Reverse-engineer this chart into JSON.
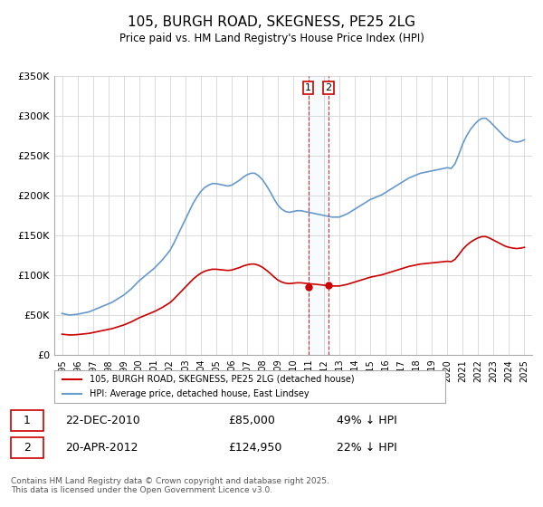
{
  "title": "105, BURGH ROAD, SKEGNESS, PE25 2LG",
  "subtitle": "Price paid vs. HM Land Registry's House Price Index (HPI)",
  "legend_label_red": "105, BURGH ROAD, SKEGNESS, PE25 2LG (detached house)",
  "legend_label_blue": "HPI: Average price, detached house, East Lindsey",
  "ylabel": "",
  "xlabel": "",
  "background_color": "#ffffff",
  "plot_bg_color": "#ffffff",
  "grid_color": "#cccccc",
  "line_color_red": "#cc0000",
  "line_color_blue": "#6699cc",
  "vline_color": "#cc0000",
  "marker1_date": 2010.97,
  "marker2_date": 2012.3,
  "transaction1": {
    "label": "1",
    "date": "22-DEC-2010",
    "price": "£85,000",
    "hpi": "49% ↓ HPI"
  },
  "transaction2": {
    "label": "2",
    "date": "20-APR-2012",
    "price": "£124,950",
    "hpi": "22% ↓ HPI"
  },
  "footer": "Contains HM Land Registry data © Crown copyright and database right 2025.\nThis data is licensed under the Open Government Licence v3.0.",
  "ylim": [
    0,
    350000
  ],
  "yticks": [
    0,
    50000,
    100000,
    150000,
    200000,
    250000,
    300000,
    350000
  ],
  "ytick_labels": [
    "£0",
    "£50K",
    "£100K",
    "£150K",
    "£200K",
    "£250K",
    "£300K",
    "£350K"
  ],
  "hpi_years": [
    1995.0,
    1995.25,
    1995.5,
    1995.75,
    1996.0,
    1996.25,
    1996.5,
    1996.75,
    1997.0,
    1997.25,
    1997.5,
    1997.75,
    1998.0,
    1998.25,
    1998.5,
    1998.75,
    1999.0,
    1999.25,
    1999.5,
    1999.75,
    2000.0,
    2000.25,
    2000.5,
    2000.75,
    2001.0,
    2001.25,
    2001.5,
    2001.75,
    2002.0,
    2002.25,
    2002.5,
    2002.75,
    2003.0,
    2003.25,
    2003.5,
    2003.75,
    2004.0,
    2004.25,
    2004.5,
    2004.75,
    2005.0,
    2005.25,
    2005.5,
    2005.75,
    2006.0,
    2006.25,
    2006.5,
    2006.75,
    2007.0,
    2007.25,
    2007.5,
    2007.75,
    2008.0,
    2008.25,
    2008.5,
    2008.75,
    2009.0,
    2009.25,
    2009.5,
    2009.75,
    2010.0,
    2010.25,
    2010.5,
    2010.75,
    2011.0,
    2011.25,
    2011.5,
    2011.75,
    2012.0,
    2012.25,
    2012.5,
    2012.75,
    2013.0,
    2013.25,
    2013.5,
    2013.75,
    2014.0,
    2014.25,
    2014.5,
    2014.75,
    2015.0,
    2015.25,
    2015.5,
    2015.75,
    2016.0,
    2016.25,
    2016.5,
    2016.75,
    2017.0,
    2017.25,
    2017.5,
    2017.75,
    2018.0,
    2018.25,
    2018.5,
    2018.75,
    2019.0,
    2019.25,
    2019.5,
    2019.75,
    2020.0,
    2020.25,
    2020.5,
    2020.75,
    2021.0,
    2021.25,
    2021.5,
    2021.75,
    2022.0,
    2022.25,
    2022.5,
    2022.75,
    2023.0,
    2023.25,
    2023.5,
    2023.75,
    2024.0,
    2024.25,
    2024.5,
    2024.75,
    2025.0
  ],
  "hpi_values": [
    52000,
    51000,
    50000,
    50500,
    51000,
    52000,
    53000,
    54000,
    56000,
    58000,
    60000,
    62000,
    64000,
    66000,
    69000,
    72000,
    75000,
    79000,
    83000,
    88000,
    93000,
    97000,
    101000,
    105000,
    109000,
    114000,
    119000,
    125000,
    131000,
    140000,
    150000,
    160000,
    170000,
    180000,
    190000,
    198000,
    205000,
    210000,
    213000,
    215000,
    215000,
    214000,
    213000,
    212000,
    213000,
    216000,
    219000,
    223000,
    226000,
    228000,
    228000,
    225000,
    220000,
    213000,
    205000,
    196000,
    188000,
    183000,
    180000,
    179000,
    180000,
    181000,
    181000,
    180000,
    179000,
    178000,
    177000,
    176000,
    175000,
    174000,
    173000,
    173000,
    173000,
    175000,
    177000,
    180000,
    183000,
    186000,
    189000,
    192000,
    195000,
    197000,
    199000,
    201000,
    204000,
    207000,
    210000,
    213000,
    216000,
    219000,
    222000,
    224000,
    226000,
    228000,
    229000,
    230000,
    231000,
    232000,
    233000,
    234000,
    235000,
    234000,
    240000,
    252000,
    265000,
    275000,
    283000,
    289000,
    294000,
    297000,
    297000,
    293000,
    288000,
    283000,
    278000,
    273000,
    270000,
    268000,
    267000,
    268000,
    270000
  ],
  "red_years": [
    1995.0,
    1995.25,
    1995.5,
    1995.75,
    1996.0,
    1996.25,
    1996.5,
    1996.75,
    1997.0,
    1997.25,
    1997.5,
    1997.75,
    1998.0,
    1998.25,
    1998.5,
    1998.75,
    1999.0,
    1999.25,
    1999.5,
    1999.75,
    2000.0,
    2000.25,
    2000.5,
    2000.75,
    2001.0,
    2001.25,
    2001.5,
    2001.75,
    2002.0,
    2002.25,
    2002.5,
    2002.75,
    2003.0,
    2003.25,
    2003.5,
    2003.75,
    2004.0,
    2004.25,
    2004.5,
    2004.75,
    2005.0,
    2005.25,
    2005.5,
    2005.75,
    2006.0,
    2006.25,
    2006.5,
    2006.75,
    2007.0,
    2007.25,
    2007.5,
    2007.75,
    2008.0,
    2008.25,
    2008.5,
    2008.75,
    2009.0,
    2009.25,
    2009.5,
    2009.75,
    2010.0,
    2010.25,
    2010.5,
    2010.75,
    2011.0,
    2011.25,
    2011.5,
    2011.75,
    2012.0,
    2012.25,
    2012.5,
    2012.75,
    2013.0,
    2013.25,
    2013.5,
    2013.75,
    2014.0,
    2014.25,
    2014.5,
    2014.75,
    2015.0,
    2015.25,
    2015.5,
    2015.75,
    2016.0,
    2016.25,
    2016.5,
    2016.75,
    2017.0,
    2017.25,
    2017.5,
    2017.75,
    2018.0,
    2018.25,
    2018.5,
    2018.75,
    2019.0,
    2019.25,
    2019.5,
    2019.75,
    2020.0,
    2020.25,
    2020.5,
    2020.75,
    2021.0,
    2021.25,
    2021.5,
    2021.75,
    2022.0,
    2022.25,
    2022.5,
    2022.75,
    2023.0,
    2023.25,
    2023.5,
    2023.75,
    2024.0,
    2024.25,
    2024.5,
    2024.75,
    2025.0
  ],
  "red_values": [
    26000,
    25500,
    25000,
    25200,
    25500,
    26000,
    26500,
    27000,
    28000,
    29000,
    30000,
    31000,
    32000,
    33000,
    34500,
    36000,
    37500,
    39500,
    41500,
    44000,
    46500,
    48500,
    50500,
    52500,
    54500,
    57000,
    59500,
    62500,
    65500,
    70000,
    75000,
    80000,
    85000,
    90000,
    95000,
    99000,
    102500,
    105000,
    106500,
    107500,
    107500,
    107000,
    106500,
    106000,
    106500,
    108000,
    109500,
    111500,
    113000,
    114000,
    114000,
    112500,
    110000,
    106500,
    102500,
    98000,
    94000,
    91500,
    90000,
    89500,
    90000,
    90500,
    90500,
    90000,
    89500,
    89000,
    88500,
    88000,
    87500,
    87000,
    86500,
    86500,
    86500,
    87500,
    88500,
    90000,
    91500,
    93000,
    94500,
    96000,
    97500,
    98500,
    99500,
    100500,
    102000,
    103500,
    105000,
    106500,
    108000,
    109500,
    111000,
    112000,
    113000,
    114000,
    114500,
    115000,
    115500,
    116000,
    116500,
    117000,
    117500,
    117000,
    120000,
    126000,
    132500,
    137500,
    141500,
    144500,
    147000,
    148500,
    148500,
    146500,
    144000,
    141500,
    139000,
    136500,
    135000,
    134000,
    133500,
    134000,
    135000
  ],
  "xticks": [
    1995,
    1996,
    1997,
    1998,
    1999,
    2000,
    2001,
    2002,
    2003,
    2004,
    2005,
    2006,
    2007,
    2008,
    2009,
    2010,
    2011,
    2012,
    2013,
    2014,
    2015,
    2016,
    2017,
    2018,
    2019,
    2020,
    2021,
    2022,
    2023,
    2024,
    2025
  ]
}
